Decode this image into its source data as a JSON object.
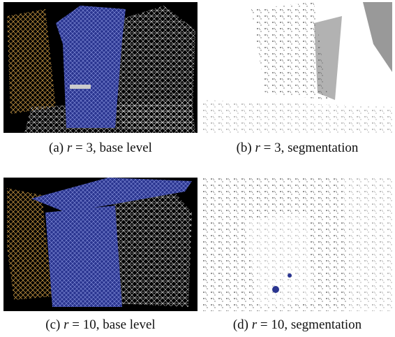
{
  "panels": [
    {
      "label": "(a)",
      "var": "r",
      "text": "= 3, base level"
    },
    {
      "label": "(b)",
      "var": "r",
      "text": "= 3, segmentation"
    },
    {
      "label": "(c)",
      "var": "r",
      "text": "= 10, base level"
    },
    {
      "label": "(d)",
      "var": "r",
      "text": "= 10, segmentation"
    }
  ]
}
